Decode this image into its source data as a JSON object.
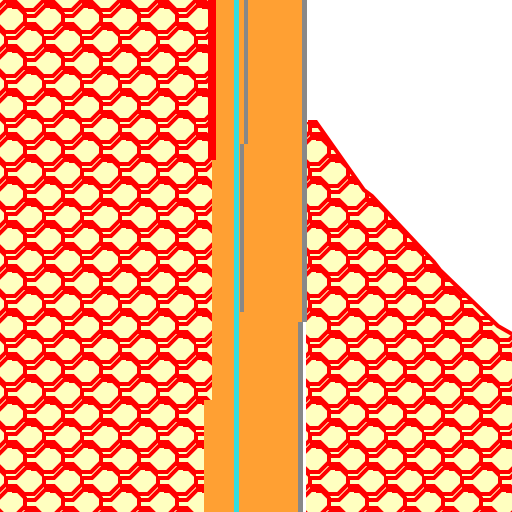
{
  "map": {
    "kind": "pixel-style map tile",
    "zoom_level": "",
    "features": [
      {
        "name": "hatched-area-west",
        "style": "red brick-hatch on pale yellow"
      },
      {
        "name": "hatched-area-east",
        "style": "red brick-hatch on pale yellow"
      },
      {
        "name": "main-road",
        "style": "orange road with cyan centre line and grey edge lines"
      }
    ],
    "colors": {
      "background": "#ffffff",
      "area_fill": "#ffffc0",
      "hatch": "#ff0000",
      "road_fill": "#ffa033",
      "road_centerline": "#33dddd",
      "road_edge": "#888888",
      "road_border_red": "#ff0000"
    }
  }
}
